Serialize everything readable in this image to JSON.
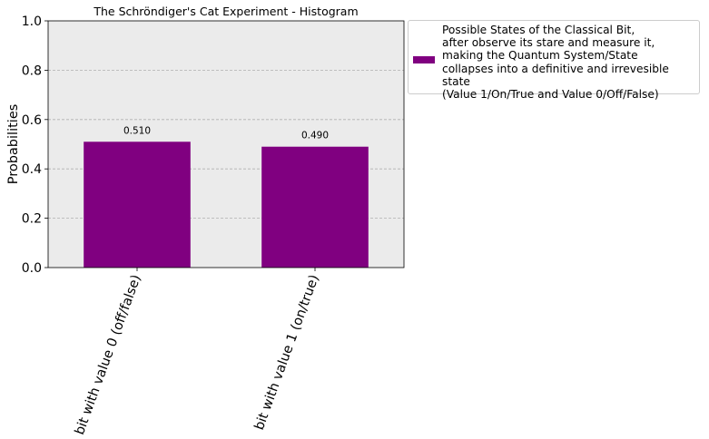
{
  "chart_data": {
    "type": "bar",
    "title": "The Schröndiger's Cat Experiment - Histogram",
    "xlabel": "",
    "ylabel": "Probabilities",
    "categories": [
      "bit with value 0 (off/false)",
      "bit with value 1 (on/true)"
    ],
    "series": [
      {
        "name": "Possible States of the Classical Bit,\nafter observe its stare and measure it,\nmaking the Quantum System/State\ncollapses into a definitive and irrevesible state\n(Value 1/On/True and Value 0/Off/False)",
        "values": [
          0.51,
          0.49
        ],
        "color": "#800080"
      }
    ],
    "data_labels": [
      "0.510",
      "0.490"
    ],
    "ylim": [
      0,
      1.0
    ],
    "yticks": [
      "0.0",
      "0.2",
      "0.4",
      "0.6",
      "0.8",
      "1.0"
    ],
    "grid": "y-dashed",
    "background": "#ebebeb",
    "legend_position": "outside-right-top"
  }
}
